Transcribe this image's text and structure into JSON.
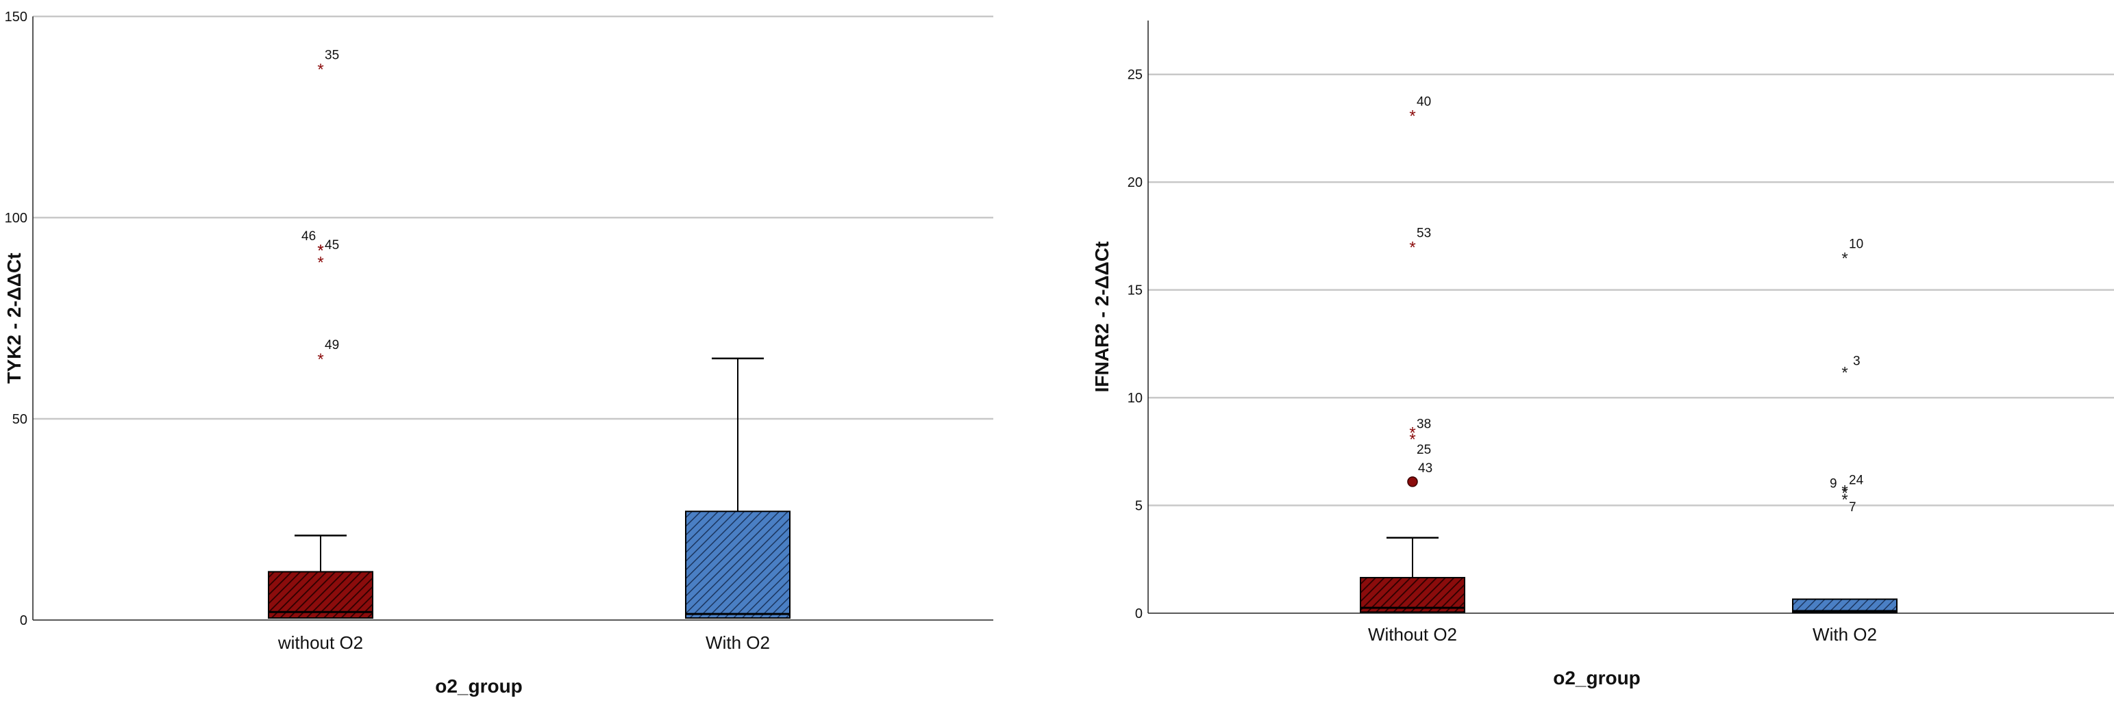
{
  "chart_data": [
    {
      "type": "boxplot",
      "id": "left",
      "title": "",
      "xlabel": "o2_group",
      "ylabel": "TYK2 - 2-ΔΔCt",
      "ylim": [
        0,
        150
      ],
      "yticks": [
        0,
        50,
        100,
        150
      ],
      "grid": true,
      "categories": [
        "without O2",
        "With O2"
      ],
      "colors": [
        "#8b0c0c",
        "#4a7fc4"
      ],
      "boxes": [
        {
          "category": "without O2",
          "whisker_low": 0,
          "q1": 0.5,
          "median": 2,
          "q3": 12,
          "whisker_high": 21
        },
        {
          "category": "With O2",
          "whisker_low": 0,
          "q1": 0.5,
          "median": 1.5,
          "q3": 27,
          "whisker_high": 65
        }
      ],
      "outliers": [
        {
          "category": "without O2",
          "value": 137,
          "label": "35",
          "marker": "star"
        },
        {
          "category": "without O2",
          "value": 92,
          "label": "46",
          "marker": "star"
        },
        {
          "category": "without O2",
          "value": 92,
          "label": "45",
          "marker": "star"
        },
        {
          "category": "without O2",
          "value": 89,
          "label": "",
          "marker": "star"
        },
        {
          "category": "without O2",
          "value": 65,
          "label": "49",
          "marker": "star"
        }
      ]
    },
    {
      "type": "boxplot",
      "id": "right",
      "title": "",
      "xlabel": "o2_group",
      "ylabel": "IFNAR2 - 2-ΔΔCt",
      "ylim": [
        0,
        27.5
      ],
      "yticks": [
        0,
        5,
        10,
        15,
        20,
        25
      ],
      "grid": true,
      "categories": [
        "Without O2",
        "With O2"
      ],
      "colors": [
        "#8b0c0c",
        "#4a7fc4"
      ],
      "boxes": [
        {
          "category": "Without O2",
          "whisker_low": 0,
          "q1": 0.05,
          "median": 0.25,
          "q3": 1.65,
          "whisker_high": 3.5
        },
        {
          "category": "With O2",
          "whisker_low": 0,
          "q1": 0.02,
          "median": 0.1,
          "q3": 0.65,
          "whisker_high": 0.65
        }
      ],
      "outliers": [
        {
          "category": "Without O2",
          "value": 23.1,
          "label": "40",
          "marker": "star"
        },
        {
          "category": "Without O2",
          "value": 17.0,
          "label": "53",
          "marker": "star"
        },
        {
          "category": "Without O2",
          "value": 8.4,
          "label": "38",
          "marker": "star"
        },
        {
          "category": "Without O2",
          "value": 8.1,
          "label": "25",
          "marker": "star"
        },
        {
          "category": "Without O2",
          "value": 6.1,
          "label": "43",
          "marker": "circle"
        },
        {
          "category": "With O2",
          "value": 16.5,
          "label": "10",
          "marker": "star"
        },
        {
          "category": "With O2",
          "value": 11.2,
          "label": "3",
          "marker": "star"
        },
        {
          "category": "With O2",
          "value": 5.7,
          "label": "9",
          "marker": "star"
        },
        {
          "category": "With O2",
          "value": 5.6,
          "label": "24",
          "marker": "star"
        },
        {
          "category": "With O2",
          "value": 5.3,
          "label": "7",
          "marker": "star"
        }
      ]
    }
  ]
}
